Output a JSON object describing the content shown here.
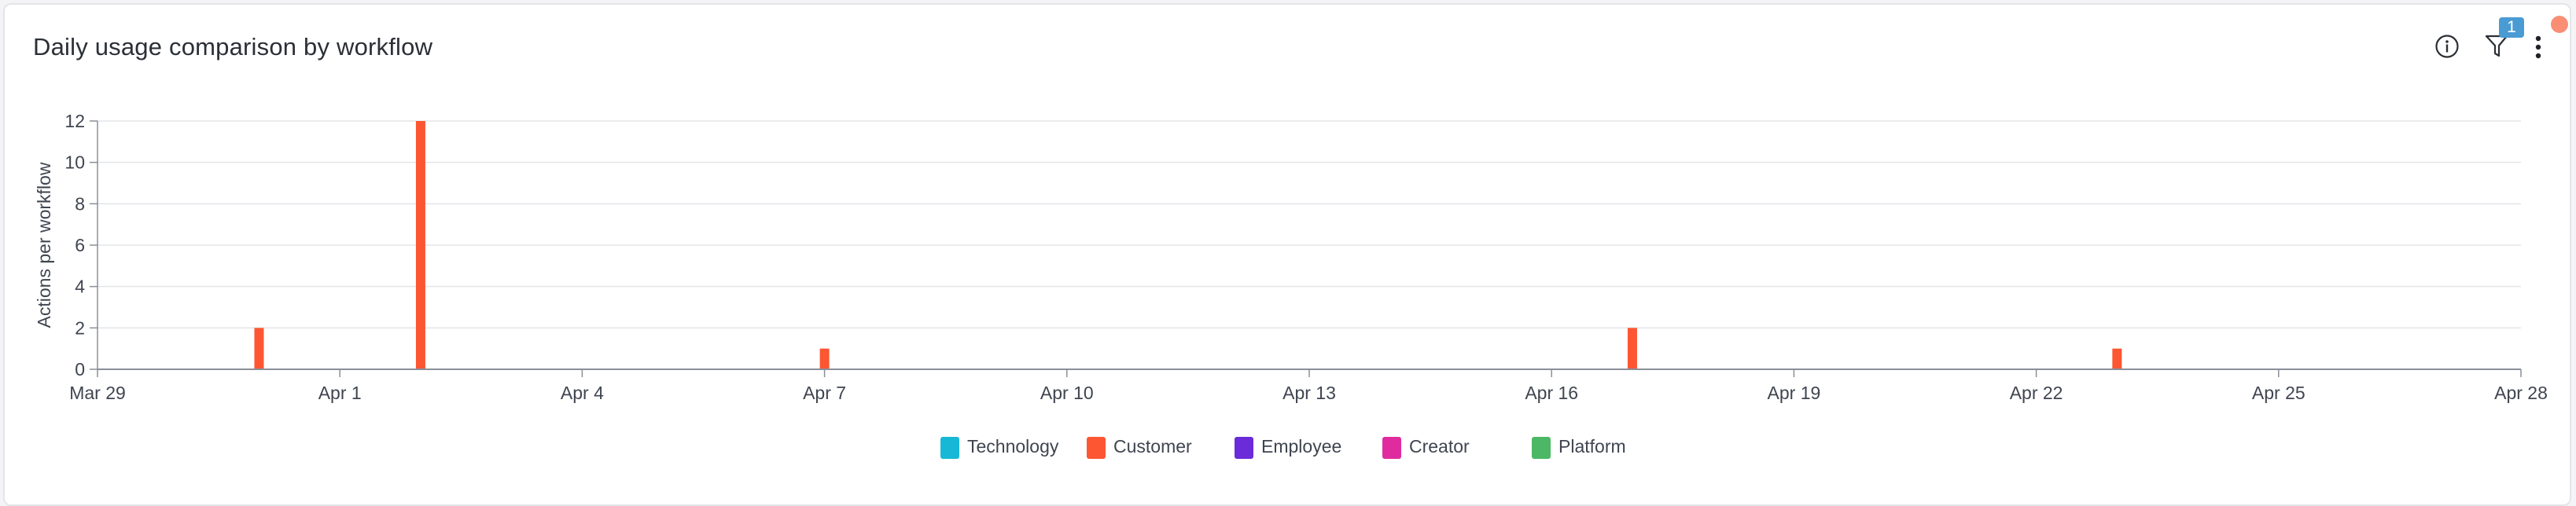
{
  "header": {
    "title": "Daily usage comparison by workflow",
    "filter_count": "1"
  },
  "icons": {
    "info": "info-circle-icon",
    "filter": "filter-funnel-icon",
    "menu": "vertical-dots-icon"
  },
  "colors": {
    "bar": "#fc5632",
    "grid": "#e3e5e8",
    "axis": "#8a8f98",
    "badge": "#4a9bd4",
    "notification": "#f98e75"
  },
  "legend": [
    {
      "label": "Technology",
      "color": "#17b8d6"
    },
    {
      "label": "Customer",
      "color": "#fc5632"
    },
    {
      "label": "Employee",
      "color": "#6c2bd9"
    },
    {
      "label": "Creator",
      "color": "#e02b9e"
    },
    {
      "label": "Platform",
      "color": "#4cb865"
    }
  ],
  "chart_data": {
    "type": "bar",
    "ylabel": "Actions per workflow",
    "xlabel": "",
    "ylim": [
      0,
      12
    ],
    "yticks": [
      0,
      2,
      4,
      6,
      8,
      10,
      12
    ],
    "x_range": [
      "2024-03-29",
      "2024-04-28"
    ],
    "xticks": [
      {
        "date": "2024-03-29",
        "label": "Mar 29"
      },
      {
        "date": "2024-04-01",
        "label": "Apr 1"
      },
      {
        "date": "2024-04-04",
        "label": "Apr 4"
      },
      {
        "date": "2024-04-07",
        "label": "Apr 7"
      },
      {
        "date": "2024-04-10",
        "label": "Apr 10"
      },
      {
        "date": "2024-04-13",
        "label": "Apr 13"
      },
      {
        "date": "2024-04-16",
        "label": "Apr 16"
      },
      {
        "date": "2024-04-19",
        "label": "Apr 19"
      },
      {
        "date": "2024-04-22",
        "label": "Apr 22"
      },
      {
        "date": "2024-04-25",
        "label": "Apr 25"
      },
      {
        "date": "2024-04-28",
        "label": "Apr 28"
      }
    ],
    "grid": true,
    "legend_position": "bottom-center",
    "series": [
      {
        "name": "Customer",
        "points": [
          {
            "x": "2024-03-31",
            "y": 2
          },
          {
            "x": "2024-04-02",
            "y": 12
          },
          {
            "x": "2024-04-07",
            "y": 1
          },
          {
            "x": "2024-04-17",
            "y": 2
          },
          {
            "x": "2024-04-23",
            "y": 1
          }
        ]
      }
    ]
  }
}
